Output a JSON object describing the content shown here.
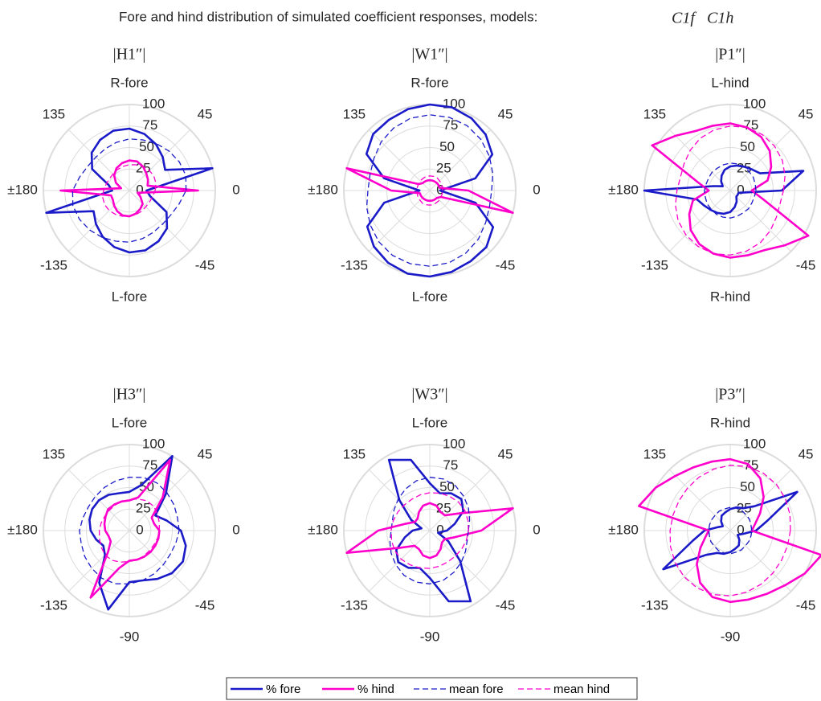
{
  "title": "Fore and hind distribution of simulated coefficient responses, models:",
  "models": [
    {
      "text": "C1f",
      "color": "#1a1ac8"
    },
    {
      "text": "C1h",
      "color": "#ff00cc"
    }
  ],
  "legend": [
    {
      "name": "% fore",
      "color": "#1a1ac8",
      "dashed": false
    },
    {
      "name": "% hind",
      "color": "#ff00cc",
      "dashed": false
    },
    {
      "name": "mean fore",
      "color": "#1a1ac8",
      "dashed": true
    },
    {
      "name": "mean hind",
      "color": "#ff00cc",
      "dashed": true
    }
  ],
  "chart_data": [
    {
      "type": "polar",
      "title": "|H1″|",
      "rlim": [
        0,
        100
      ],
      "rticks": [
        0,
        25,
        50,
        75,
        100
      ],
      "thetaticks": [
        0,
        45,
        {
          "value": 90,
          "label": "R-fore"
        },
        135,
        {
          "value": 180,
          "label": "±180"
        },
        -135,
        {
          "value": -90,
          "label": "L-fore"
        },
        -45
      ],
      "theta": [
        0,
        15,
        30,
        45,
        60,
        75,
        90,
        105,
        120,
        135,
        150,
        165,
        180,
        195,
        210,
        225,
        240,
        255,
        270,
        285,
        300,
        315,
        330,
        345
      ],
      "series": [
        {
          "values": [
            20,
            100,
            48,
            55,
            62,
            68,
            72,
            72,
            68,
            62,
            50,
            25,
            20,
            100,
            48,
            55,
            62,
            68,
            72,
            72,
            68,
            62,
            50,
            25
          ]
        },
        {
          "values": [
            80,
            22,
            25,
            28,
            32,
            35,
            35,
            33,
            30,
            25,
            18,
            10,
            80,
            22,
            22,
            25,
            28,
            30,
            30,
            28,
            25,
            22,
            15,
            10
          ]
        },
        {
          "values": [
            66,
            68,
            67,
            65,
            63,
            61,
            60,
            58,
            56,
            55,
            56,
            60,
            66,
            68,
            67,
            65,
            63,
            61,
            60,
            58,
            56,
            55,
            56,
            60
          ]
        },
        {
          "values": [
            30,
            32,
            33,
            33,
            32,
            31,
            30,
            29,
            28,
            27,
            27,
            28,
            30,
            32,
            33,
            33,
            32,
            31,
            30,
            29,
            28,
            27,
            27,
            28
          ]
        }
      ]
    },
    {
      "type": "polar",
      "title": "|W1″|",
      "rlim": [
        0,
        100
      ],
      "rticks": [
        0,
        25,
        50,
        75,
        100
      ],
      "thetaticks": [
        0,
        45,
        {
          "value": 90,
          "label": "R-fore"
        },
        135,
        {
          "value": 180,
          "label": "±180"
        },
        -135,
        {
          "value": -90,
          "label": "L-fore"
        },
        -45
      ],
      "theta": [
        0,
        15,
        30,
        45,
        60,
        75,
        90,
        105,
        120,
        135,
        150,
        165,
        180,
        195,
        210,
        225,
        240,
        255,
        270,
        285,
        300,
        315,
        330,
        345
      ],
      "series": [
        {
          "values": [
            12,
            55,
            84,
            92,
            97,
            100,
            100,
            98,
            95,
            93,
            85,
            55,
            12,
            55,
            84,
            92,
            97,
            100,
            100,
            98,
            95,
            93,
            85,
            55
          ]
        },
        {
          "values": [
            45,
            12,
            12,
            12,
            12,
            12,
            12,
            12,
            12,
            12,
            15,
            100,
            45,
            12,
            12,
            12,
            12,
            12,
            12,
            12,
            12,
            12,
            15,
            100
          ]
        },
        {
          "values": [
            72,
            76,
            80,
            84,
            87,
            88,
            88,
            87,
            84,
            80,
            75,
            72,
            72,
            76,
            80,
            84,
            87,
            88,
            88,
            87,
            84,
            80,
            75,
            72
          ]
        },
        {
          "values": [
            15,
            15,
            16,
            16,
            17,
            17,
            17,
            17,
            16,
            16,
            15,
            15,
            15,
            15,
            16,
            16,
            17,
            17,
            17,
            17,
            16,
            16,
            15,
            15
          ]
        }
      ]
    },
    {
      "type": "polar",
      "title": "|P1″|",
      "rlim": [
        0,
        100
      ],
      "rticks": [
        0,
        25,
        50,
        75,
        100
      ],
      "thetaticks": [
        0,
        45,
        {
          "value": 90,
          "label": "L-hind"
        },
        135,
        {
          "value": 180,
          "label": "±180"
        },
        -135,
        {
          "value": -90,
          "label": "R-hind"
        },
        -45
      ],
      "theta": [
        0,
        15,
        30,
        45,
        60,
        75,
        90,
        105,
        120,
        135,
        150,
        165,
        180,
        195,
        210,
        225,
        240,
        255,
        270,
        285,
        300,
        315,
        330,
        345
      ],
      "series": [
        {
          "values": [
            60,
            88,
            40,
            35,
            32,
            30,
            28,
            25,
            20,
            15,
            10,
            20,
            100,
            40,
            35,
            32,
            30,
            28,
            25,
            20,
            15,
            10,
            10,
            10
          ]
        },
        {
          "values": [
            25,
            45,
            55,
            65,
            72,
            76,
            78,
            78,
            80,
            90,
            105,
            40,
            25,
            45,
            55,
            65,
            72,
            76,
            78,
            78,
            80,
            90,
            105,
            40
          ]
        },
        {
          "values": [
            30,
            30,
            31,
            31,
            32,
            32,
            32,
            31,
            30,
            30,
            29,
            29,
            30,
            30,
            31,
            31,
            32,
            32,
            32,
            31,
            30,
            30,
            29,
            29
          ]
        },
        {
          "values": [
            62,
            66,
            70,
            73,
            75,
            76,
            75,
            73,
            70,
            66,
            62,
            60,
            62,
            66,
            70,
            73,
            75,
            76,
            75,
            73,
            70,
            66,
            62,
            60
          ]
        }
      ]
    },
    {
      "type": "polar",
      "title": "|H3″|",
      "rlim": [
        0,
        100
      ],
      "rticks": [
        0,
        25,
        50,
        75,
        100
      ],
      "thetaticks": [
        0,
        45,
        {
          "value": 90,
          "label": "L-fore"
        },
        135,
        {
          "value": 180,
          "label": "±180"
        },
        -135,
        -90,
        -45
      ],
      "theta": [
        0,
        15,
        30,
        45,
        60,
        75,
        90,
        105,
        120,
        135,
        150,
        165,
        180,
        195,
        210,
        225,
        240,
        255,
        270,
        285,
        300,
        315,
        330,
        345
      ],
      "series": [
        {
          "values": [
            60,
            45,
            35,
            60,
            100,
            55,
            45,
            45,
            48,
            50,
            50,
            48,
            45,
            40,
            35,
            40,
            70,
            95,
            60,
            60,
            65,
            70,
            72,
            68
          ]
        },
        {
          "values": [
            35,
            30,
            30,
            55,
            95,
            40,
            35,
            35,
            35,
            35,
            32,
            30,
            28,
            25,
            25,
            35,
            90,
            45,
            35,
            35,
            35,
            35,
            35,
            35
          ]
        },
        {
          "values": [
            58,
            58,
            60,
            62,
            64,
            64,
            62,
            60,
            58,
            56,
            55,
            56,
            58,
            58,
            60,
            62,
            64,
            64,
            62,
            60,
            58,
            56,
            55,
            56
          ]
        },
        {
          "values": [
            35,
            36,
            38,
            40,
            40,
            38,
            36,
            35,
            34,
            33,
            33,
            34,
            35,
            36,
            38,
            40,
            40,
            38,
            36,
            35,
            34,
            33,
            33,
            34
          ]
        }
      ]
    },
    {
      "type": "polar",
      "title": "|W3″|",
      "rlim": [
        0,
        100
      ],
      "rticks": [
        0,
        25,
        50,
        75,
        100
      ],
      "thetaticks": [
        0,
        45,
        {
          "value": 90,
          "label": "L-fore"
        },
        135,
        {
          "value": 180,
          "label": "±180"
        },
        -135,
        -90,
        -45
      ],
      "theta": [
        0,
        15,
        30,
        45,
        60,
        75,
        90,
        105,
        120,
        135,
        150,
        165,
        180,
        195,
        210,
        225,
        240,
        255,
        270,
        285,
        300,
        315,
        330,
        345
      ],
      "series": [
        {
          "values": [
            20,
            30,
            45,
            52,
            50,
            45,
            55,
            85,
            95,
            50,
            25,
            10,
            20,
            30,
            45,
            52,
            50,
            45,
            55,
            85,
            95,
            50,
            25,
            10
          ]
        },
        {
          "values": [
            60,
            100,
            40,
            25,
            25,
            30,
            32,
            30,
            25,
            20,
            20,
            30,
            60,
            100,
            40,
            25,
            25,
            30,
            32,
            30,
            25,
            20,
            20,
            30
          ]
        },
        {
          "values": [
            45,
            48,
            52,
            56,
            60,
            62,
            62,
            60,
            56,
            52,
            48,
            45,
            45,
            48,
            52,
            56,
            60,
            62,
            62,
            60,
            56,
            52,
            48,
            45
          ]
        },
        {
          "values": [
            45,
            46,
            47,
            47,
            46,
            45,
            44,
            43,
            42,
            42,
            43,
            44,
            45,
            46,
            47,
            47,
            46,
            45,
            44,
            43,
            42,
            42,
            43,
            44
          ]
        }
      ]
    },
    {
      "type": "polar",
      "title": "|P3″|",
      "rlim": [
        0,
        100
      ],
      "rticks": [
        0,
        25,
        50,
        75,
        100
      ],
      "thetaticks": [
        0,
        45,
        {
          "value": 90,
          "label": "R-hind"
        },
        135,
        {
          "value": 180,
          "label": "±180"
        },
        -135,
        -90,
        -45
      ],
      "theta": [
        0,
        15,
        30,
        45,
        60,
        75,
        90,
        105,
        120,
        135,
        150,
        165,
        180,
        195,
        210,
        225,
        240,
        255,
        270,
        285,
        300,
        315,
        330,
        345
      ],
      "series": [
        {
          "values": [
            30,
            45,
            90,
            40,
            30,
            28,
            25,
            22,
            20,
            15,
            10,
            15,
            30,
            45,
            90,
            40,
            30,
            28,
            25,
            22,
            20,
            15,
            10,
            15
          ]
        },
        {
          "values": [
            25,
            30,
            40,
            55,
            70,
            80,
            83,
            83,
            85,
            90,
            100,
            110,
            25,
            30,
            40,
            55,
            70,
            80,
            83,
            83,
            85,
            90,
            100,
            110
          ]
        },
        {
          "values": [
            25,
            25,
            26,
            26,
            27,
            27,
            27,
            26,
            26,
            25,
            25,
            25,
            25,
            25,
            26,
            26,
            27,
            27,
            27,
            26,
            26,
            25,
            25,
            25
          ]
        },
        {
          "values": [
            70,
            72,
            74,
            76,
            77,
            77,
            76,
            74,
            72,
            70,
            69,
            69,
            70,
            72,
            74,
            76,
            77,
            77,
            76,
            74,
            72,
            70,
            69,
            69
          ]
        }
      ]
    }
  ]
}
